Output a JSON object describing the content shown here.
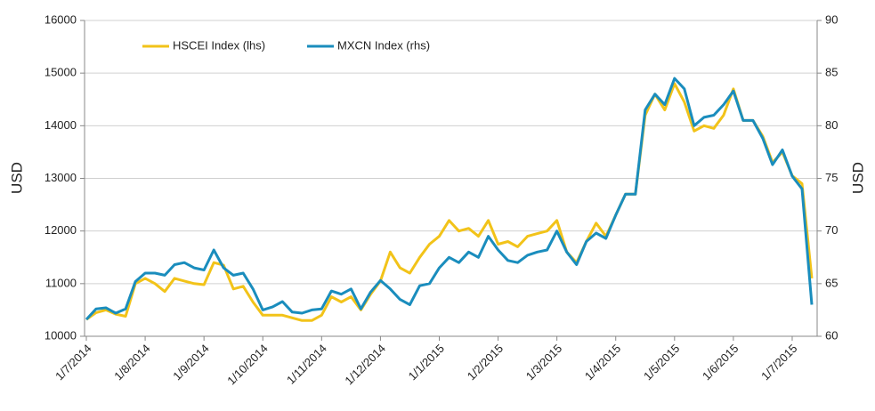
{
  "chart_data": {
    "type": "line",
    "y_label": "USD",
    "y2_label": "USD",
    "grid": true,
    "legend": "top-left",
    "categories": [
      "1/7/2014",
      null,
      null,
      null,
      null,
      null,
      "1/8/2014",
      null,
      null,
      null,
      null,
      null,
      "1/9/2014",
      null,
      null,
      null,
      null,
      null,
      "1/10/2014",
      null,
      null,
      null,
      null,
      null,
      "1/11/2014",
      null,
      null,
      null,
      null,
      null,
      "1/12/2014",
      null,
      null,
      null,
      null,
      null,
      "1/1/2015",
      null,
      null,
      null,
      null,
      null,
      "1/2/2015",
      null,
      null,
      null,
      null,
      null,
      "1/3/2015",
      null,
      null,
      null,
      null,
      null,
      "1/4/2015",
      null,
      null,
      null,
      null,
      null,
      "1/5/2015",
      null,
      null,
      null,
      null,
      null,
      "1/6/2015",
      null,
      null,
      null,
      null,
      null,
      "1/7/2015",
      null,
      null
    ],
    "ylim": [
      10000,
      16000
    ],
    "yticks": [
      10000,
      11000,
      12000,
      13000,
      14000,
      15000,
      16000
    ],
    "y2lim": [
      60,
      90
    ],
    "y2ticks": [
      60,
      65,
      70,
      75,
      80,
      85,
      90
    ],
    "series": [
      {
        "name": "HSCEI Index (lhs)",
        "color": "#f2c319",
        "axis": "y",
        "values": [
          10320,
          10450,
          10500,
          10420,
          10380,
          11000,
          11100,
          11000,
          10850,
          11100,
          11050,
          11000,
          10980,
          11400,
          11350,
          10900,
          10950,
          10650,
          10400,
          10400,
          10400,
          10350,
          10300,
          10300,
          10400,
          10750,
          10650,
          10750,
          10500,
          10800,
          11050,
          11600,
          11300,
          11200,
          11500,
          11750,
          11900,
          12200,
          12000,
          12050,
          11900,
          12200,
          11750,
          11800,
          11700,
          11900,
          11950,
          12000,
          12200,
          11600,
          11400,
          11800,
          12150,
          11900,
          12300,
          12700,
          12700,
          14200,
          14600,
          14300,
          14800,
          14450,
          13900,
          14000,
          13950,
          14200,
          14700,
          14100,
          14100,
          13800,
          13300,
          13500,
          13050,
          12900,
          11100
        ]
      },
      {
        "name": "MXCN Index  (rhs)",
        "color": "#1a8dbd",
        "axis": "y2",
        "values": [
          61.6,
          62.6,
          62.7,
          62.2,
          62.6,
          65.2,
          66.0,
          66.0,
          65.8,
          66.8,
          67.0,
          66.5,
          66.3,
          68.2,
          66.5,
          65.8,
          66.0,
          64.5,
          62.5,
          62.8,
          63.3,
          62.3,
          62.2,
          62.5,
          62.6,
          64.3,
          64.0,
          64.5,
          62.6,
          64.2,
          65.3,
          64.5,
          63.5,
          63.0,
          64.8,
          65.0,
          66.5,
          67.5,
          67.0,
          68.0,
          67.5,
          69.5,
          68.2,
          67.2,
          67.0,
          67.7,
          68.0,
          68.2,
          70.0,
          68.0,
          66.8,
          69.0,
          69.8,
          69.3,
          71.5,
          73.5,
          73.5,
          81.5,
          83.0,
          82.0,
          84.5,
          83.5,
          80.0,
          80.8,
          81.0,
          82.0,
          83.3,
          80.5,
          80.5,
          78.8,
          76.3,
          77.7,
          75.2,
          74.0,
          63.0
        ]
      }
    ]
  }
}
